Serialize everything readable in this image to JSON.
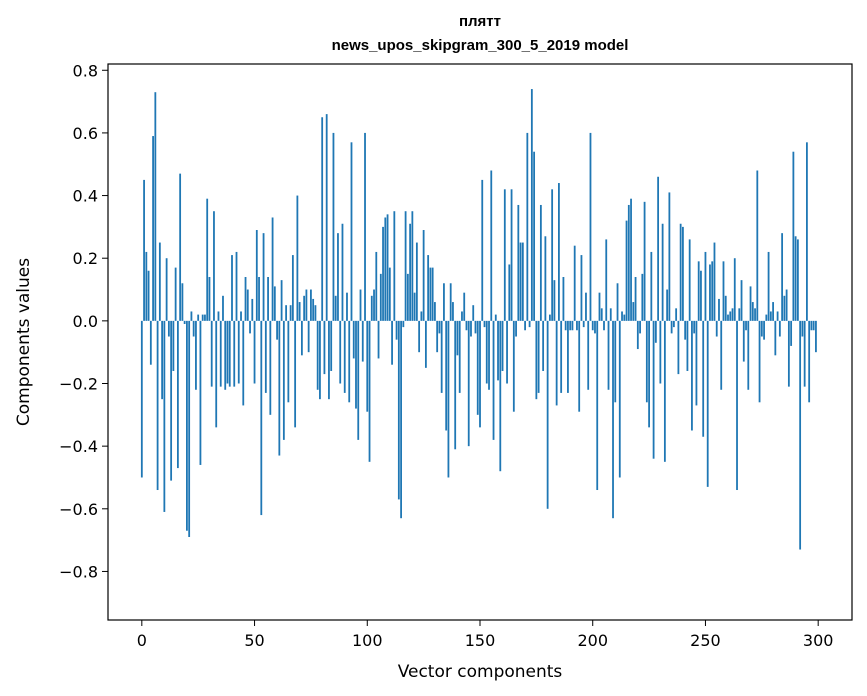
{
  "chart_data": {
    "type": "bar",
    "title": "плятт",
    "subtitle": "news_upos_skipgram_300_5_2019 model",
    "xlabel": "Vector components",
    "ylabel": "Components values",
    "xlim": [
      -15,
      315
    ],
    "ylim": [
      -0.955,
      0.82
    ],
    "xticks": [
      0,
      50,
      100,
      150,
      200,
      250,
      300
    ],
    "xtick_labels": [
      "0",
      "50",
      "100",
      "150",
      "200",
      "250",
      "300"
    ],
    "yticks": [
      -0.8,
      -0.6,
      -0.4,
      -0.2,
      0.0,
      0.2,
      0.4,
      0.6,
      0.8
    ],
    "ytick_labels": [
      "−0.8",
      "−0.6",
      "−0.4",
      "−0.2",
      "0.0",
      "0.2",
      "0.4",
      "0.6",
      "0.8"
    ],
    "bar_color": "#1f77b4",
    "grid": false,
    "legend": "none",
    "x": "0..299",
    "values": [
      -0.5,
      0.45,
      0.22,
      0.16,
      -0.14,
      0.59,
      0.73,
      -0.54,
      0.25,
      -0.25,
      -0.61,
      0.2,
      -0.05,
      -0.51,
      -0.16,
      0.17,
      -0.47,
      0.47,
      0.12,
      -0.01,
      -0.67,
      -0.69,
      0.03,
      -0.05,
      -0.22,
      0.02,
      -0.46,
      0.02,
      0.02,
      0.39,
      0.14,
      -0.21,
      0.35,
      -0.34,
      0.03,
      -0.21,
      0.08,
      -0.22,
      -0.2,
      -0.21,
      0.21,
      -0.21,
      0.22,
      -0.2,
      0.03,
      -0.27,
      0.14,
      0.1,
      -0.04,
      0.07,
      -0.2,
      0.29,
      0.14,
      -0.62,
      0.28,
      -0.23,
      0.14,
      -0.3,
      0.33,
      0.11,
      -0.06,
      -0.43,
      0.13,
      -0.38,
      0.05,
      -0.26,
      0.05,
      0.21,
      -0.34,
      0.4,
      0.06,
      -0.11,
      0.08,
      0.1,
      -0.1,
      0.1,
      0.07,
      0.05,
      -0.22,
      -0.25,
      0.65,
      -0.17,
      0.66,
      -0.25,
      -0.16,
      0.6,
      0.08,
      0.28,
      -0.2,
      0.31,
      -0.23,
      0.09,
      -0.26,
      0.57,
      -0.12,
      -0.28,
      -0.38,
      0.1,
      -0.13,
      0.6,
      -0.29,
      -0.45,
      0.08,
      0.1,
      0.22,
      -0.12,
      0.15,
      0.3,
      0.33,
      0.34,
      0.17,
      -0.14,
      0.35,
      -0.06,
      -0.57,
      -0.63,
      -0.02,
      0.35,
      0.15,
      0.31,
      0.35,
      0.09,
      0.25,
      -0.1,
      0.03,
      0.29,
      -0.15,
      0.21,
      0.17,
      0.17,
      0.06,
      -0.1,
      -0.04,
      -0.23,
      0.12,
      -0.35,
      -0.5,
      0.12,
      0.06,
      -0.41,
      -0.11,
      -0.23,
      0.03,
      0.09,
      -0.03,
      -0.4,
      -0.05,
      0.05,
      -0.04,
      -0.3,
      -0.34,
      0.45,
      -0.02,
      -0.2,
      -0.22,
      0.48,
      -0.38,
      0.02,
      -0.19,
      -0.48,
      -0.16,
      0.42,
      -0.2,
      0.18,
      0.42,
      -0.29,
      -0.05,
      0.37,
      0.25,
      0.25,
      -0.03,
      0.6,
      -0.02,
      0.74,
      0.54,
      -0.25,
      -0.23,
      0.37,
      -0.16,
      0.27,
      -0.6,
      0.02,
      0.42,
      0.13,
      -0.27,
      0.44,
      -0.23,
      0.14,
      -0.03,
      -0.23,
      -0.03,
      -0.03,
      0.24,
      -0.03,
      -0.29,
      0.21,
      -0.02,
      0.09,
      -0.22,
      0.6,
      -0.03,
      -0.04,
      -0.54,
      0.09,
      0.04,
      -0.03,
      0.26,
      -0.22,
      0.04,
      -0.63,
      -0.26,
      0.12,
      -0.5,
      0.03,
      0.02,
      0.32,
      0.37,
      0.39,
      0.06,
      0.14,
      -0.09,
      -0.04,
      0.15,
      0.38,
      -0.26,
      -0.34,
      0.22,
      -0.44,
      -0.07,
      0.46,
      -0.2,
      0.31,
      -0.45,
      0.1,
      0.41,
      -0.04,
      -0.02,
      0.04,
      -0.17,
      0.31,
      0.3,
      -0.06,
      -0.16,
      0.26,
      -0.35,
      -0.04,
      -0.27,
      0.19,
      0.16,
      -0.37,
      0.22,
      -0.53,
      0.18,
      0.19,
      0.25,
      -0.05,
      0.07,
      -0.22,
      0.19,
      0.08,
      0.02,
      0.03,
      0.04,
      0.2,
      -0.54,
      0.04,
      0.13,
      -0.13,
      -0.03,
      -0.22,
      0.11,
      0.06,
      0.04,
      0.48,
      -0.26,
      -0.05,
      -0.06,
      0.02,
      0.22,
      0.03,
      0.06,
      -0.11,
      0.03,
      -0.05,
      0.28,
      0.08,
      0.1,
      -0.21,
      -0.08,
      0.54,
      0.27,
      0.26,
      -0.73,
      -0.05,
      -0.21,
      0.57,
      -0.26,
      -0.03,
      -0.03,
      -0.1
    ]
  }
}
